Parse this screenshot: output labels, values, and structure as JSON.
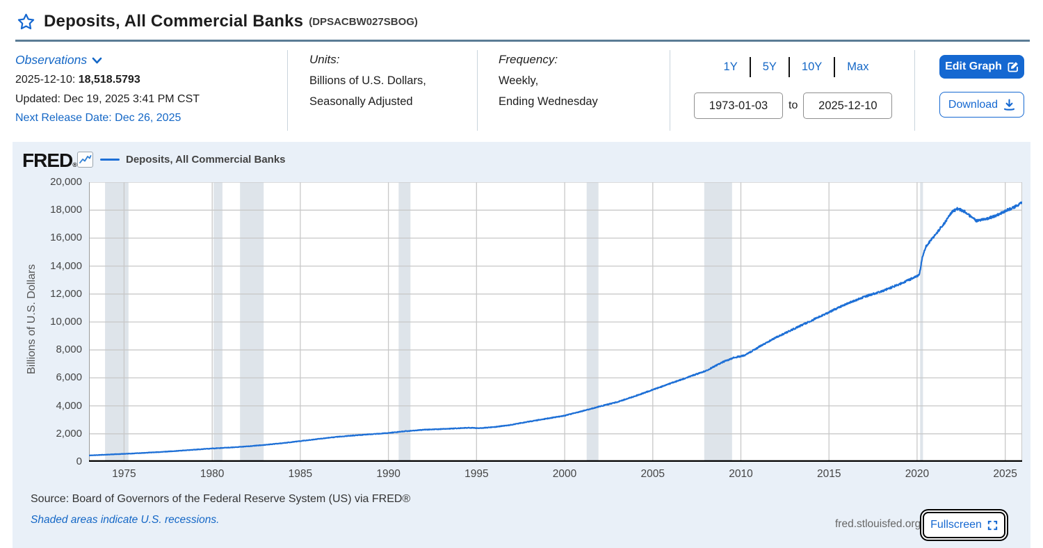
{
  "header": {
    "title": "Deposits, All Commercial Banks",
    "series_id": "(DPSACBW027SBOG)"
  },
  "observations": {
    "label": "Observations",
    "date_label": "2025-12-10:",
    "value": "18,518.5793",
    "updated": "Updated: Dec 19, 2025 3:41 PM CST",
    "next_release": "Next Release Date: Dec 26, 2025"
  },
  "units": {
    "label": "Units:",
    "line1": "Billions of U.S. Dollars,",
    "line2": "Seasonally Adjusted"
  },
  "frequency": {
    "label": "Frequency:",
    "line1": "Weekly,",
    "line2": "Ending Wednesday"
  },
  "range_controls": {
    "ranges": [
      "1Y",
      "5Y",
      "10Y",
      "Max"
    ],
    "start_date": "1973-01-03",
    "to_label": "to",
    "end_date": "2025-12-10"
  },
  "actions": {
    "edit_graph": "Edit Graph",
    "download": "Download"
  },
  "chart_panel": {
    "logo": "FRED",
    "logo_reg": "®",
    "legend_label": "Deposits, All Commercial Banks"
  },
  "footer": {
    "source": "Source: Board of Governors of the Federal Reserve System (US) via FRED®",
    "recession_note": "Shaded areas indicate U.S. recessions.",
    "site": "fred.stlouisfed.org",
    "fullscreen": "Fullscreen"
  },
  "colors": {
    "accent_blue": "#1568d1",
    "series_line": "#1d6fd6",
    "recession_shading": "#dee4ea",
    "panel_background": "#e9f0f8",
    "gridline": "#c8c8c8",
    "axis_bottom": "#000000",
    "axis_left": "#9a9a9a"
  },
  "chart_data": {
    "type": "line",
    "title": "Deposits, All Commercial Banks",
    "ylabel": "Billions of U.S. Dollars",
    "x_range": [
      1973.01,
      2025.96
    ],
    "y_range": [
      0,
      20000
    ],
    "x_ticks": [
      1975,
      1980,
      1985,
      1990,
      1995,
      2000,
      2005,
      2010,
      2015,
      2020,
      2025
    ],
    "y_ticks": [
      0,
      2000,
      4000,
      6000,
      8000,
      10000,
      12000,
      14000,
      16000,
      18000,
      20000
    ],
    "grid": true,
    "legend_position": "top-left",
    "recessions": [
      [
        1973.92,
        1975.25
      ],
      [
        1980.08,
        1980.58
      ],
      [
        1981.58,
        1982.92
      ],
      [
        1990.58,
        1991.25
      ],
      [
        2001.25,
        2001.92
      ],
      [
        2007.92,
        2009.5
      ],
      [
        2020.17,
        2020.33
      ]
    ],
    "series": [
      {
        "name": "Deposits, All Commercial Banks",
        "units": "Billions of U.S. Dollars, Seasonally Adjusted",
        "frequency": "Weekly, Ending Wednesday",
        "anchors": [
          [
            1973.0,
            450
          ],
          [
            1974,
            510
          ],
          [
            1975,
            565
          ],
          [
            1976,
            625
          ],
          [
            1977,
            695
          ],
          [
            1978,
            775
          ],
          [
            1979,
            865
          ],
          [
            1980,
            950
          ],
          [
            1981,
            1020
          ],
          [
            1982,
            1100
          ],
          [
            1983,
            1210
          ],
          [
            1984,
            1330
          ],
          [
            1985,
            1480
          ],
          [
            1986,
            1630
          ],
          [
            1987,
            1770
          ],
          [
            1988,
            1880
          ],
          [
            1989,
            1970
          ],
          [
            1990,
            2060
          ],
          [
            1991,
            2190
          ],
          [
            1992,
            2290
          ],
          [
            1993,
            2340
          ],
          [
            1994,
            2400
          ],
          [
            1994.6,
            2430
          ],
          [
            1995.2,
            2400
          ],
          [
            1996,
            2480
          ],
          [
            1997,
            2650
          ],
          [
            1998,
            2880
          ],
          [
            1999,
            3090
          ],
          [
            2000,
            3300
          ],
          [
            2001,
            3620
          ],
          [
            2002,
            3960
          ],
          [
            2003,
            4280
          ],
          [
            2004,
            4700
          ],
          [
            2005,
            5150
          ],
          [
            2006,
            5600
          ],
          [
            2007,
            6050
          ],
          [
            2008,
            6500
          ],
          [
            2009,
            7150
          ],
          [
            2009.6,
            7450
          ],
          [
            2010.2,
            7600
          ],
          [
            2011,
            8200
          ],
          [
            2012,
            8900
          ],
          [
            2013,
            9500
          ],
          [
            2014,
            10100
          ],
          [
            2015,
            10700
          ],
          [
            2016,
            11300
          ],
          [
            2017,
            11800
          ],
          [
            2018,
            12200
          ],
          [
            2019,
            12700
          ],
          [
            2019.95,
            13250
          ],
          [
            2020.13,
            13400
          ],
          [
            2020.3,
            14700
          ],
          [
            2020.5,
            15400
          ],
          [
            2020.75,
            15800
          ],
          [
            2021,
            16200
          ],
          [
            2021.5,
            17000
          ],
          [
            2022,
            17900
          ],
          [
            2022.3,
            18100
          ],
          [
            2022.7,
            17900
          ],
          [
            2023,
            17600
          ],
          [
            2023.35,
            17250
          ],
          [
            2023.7,
            17330
          ],
          [
            2024,
            17400
          ],
          [
            2024.5,
            17620
          ],
          [
            2025,
            17950
          ],
          [
            2025.5,
            18200
          ],
          [
            2025.94,
            18518.5793
          ]
        ]
      }
    ],
    "last_observation": {
      "date": "2025-12-10",
      "value": 18518.5793
    }
  }
}
